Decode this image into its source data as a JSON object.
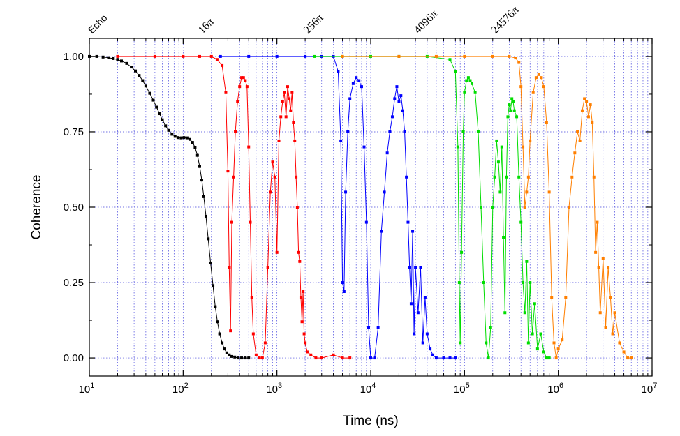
{
  "chart_data": {
    "type": "scatter",
    "title": "",
    "xlabel": "Time (ns)",
    "ylabel": "Coherence",
    "x_scale": "log",
    "xlim": [
      10,
      10000000
    ],
    "ylim": [
      -0.06,
      1.06
    ],
    "x_ticks": [
      {
        "value": 10,
        "base": "10",
        "exp": "1"
      },
      {
        "value": 100,
        "base": "10",
        "exp": "2"
      },
      {
        "value": 1000,
        "base": "10",
        "exp": "3"
      },
      {
        "value": 10000,
        "base": "10",
        "exp": "4"
      },
      {
        "value": 100000,
        "base": "10",
        "exp": "5"
      },
      {
        "value": 1000000,
        "base": "10",
        "exp": "6"
      },
      {
        "value": 10000000,
        "base": "10",
        "exp": "7"
      }
    ],
    "y_ticks": [
      {
        "value": 0,
        "label": "0.00"
      },
      {
        "value": 0.25,
        "label": "0.25"
      },
      {
        "value": 0.5,
        "label": "0.50"
      },
      {
        "value": 0.75,
        "label": "0.75"
      },
      {
        "value": 1,
        "label": "1.00"
      }
    ],
    "grid": true,
    "legend": "none",
    "annotations": [
      {
        "text": "Echo",
        "x": 10
      },
      {
        "text": "16π",
        "x": 150
      },
      {
        "text": "256π",
        "x": 2000
      },
      {
        "text": "4096π",
        "x": 30000
      },
      {
        "text": "24576π",
        "x": 200000
      }
    ],
    "series": [
      {
        "color": "#000000",
        "points": [
          [
            10,
            1.0
          ],
          [
            12,
            1.0
          ],
          [
            14,
            0.998
          ],
          [
            16,
            0.996
          ],
          [
            18,
            0.993
          ],
          [
            20,
            0.99
          ],
          [
            22,
            0.985
          ],
          [
            25,
            0.977
          ],
          [
            28,
            0.965
          ],
          [
            31,
            0.952
          ],
          [
            34,
            0.937
          ],
          [
            37,
            0.92
          ],
          [
            40,
            0.902
          ],
          [
            44,
            0.878
          ],
          [
            48,
            0.855
          ],
          [
            52,
            0.832
          ],
          [
            56,
            0.81
          ],
          [
            60,
            0.79
          ],
          [
            65,
            0.77
          ],
          [
            70,
            0.755
          ],
          [
            76,
            0.742
          ],
          [
            82,
            0.735
          ],
          [
            88,
            0.731
          ],
          [
            95,
            0.73
          ],
          [
            102,
            0.731
          ],
          [
            110,
            0.73
          ],
          [
            118,
            0.725
          ],
          [
            126,
            0.715
          ],
          [
            134,
            0.698
          ],
          [
            142,
            0.672
          ],
          [
            150,
            0.635
          ],
          [
            158,
            0.59
          ],
          [
            166,
            0.535
          ],
          [
            175,
            0.47
          ],
          [
            185,
            0.395
          ],
          [
            196,
            0.315
          ],
          [
            208,
            0.24
          ],
          [
            220,
            0.17
          ],
          [
            232,
            0.12
          ],
          [
            245,
            0.08
          ],
          [
            260,
            0.05
          ],
          [
            275,
            0.03
          ],
          [
            292,
            0.017
          ],
          [
            310,
            0.01
          ],
          [
            330,
            0.005
          ],
          [
            355,
            0.003
          ],
          [
            385,
            0.0
          ],
          [
            420,
            0.0
          ],
          [
            460,
            0.0
          ],
          [
            500,
            0.0
          ]
        ]
      },
      {
        "color": "#ff0000",
        "points": [
          [
            20,
            1.0
          ],
          [
            50,
            1.0
          ],
          [
            100,
            1.0
          ],
          [
            150,
            1.0
          ],
          [
            200,
            1.0
          ],
          [
            230,
            0.99
          ],
          [
            260,
            0.97
          ],
          [
            285,
            0.88
          ],
          [
            300,
            0.62
          ],
          [
            310,
            0.3
          ],
          [
            320,
            0.09
          ],
          [
            330,
            0.45
          ],
          [
            345,
            0.6
          ],
          [
            360,
            0.75
          ],
          [
            380,
            0.85
          ],
          [
            400,
            0.9
          ],
          [
            420,
            0.93
          ],
          [
            440,
            0.93
          ],
          [
            460,
            0.92
          ],
          [
            480,
            0.9
          ],
          [
            500,
            0.7
          ],
          [
            520,
            0.45
          ],
          [
            540,
            0.2
          ],
          [
            560,
            0.08
          ],
          [
            600,
            0.01
          ],
          [
            650,
            0.0
          ],
          [
            700,
            0.0
          ],
          [
            750,
            0.05
          ],
          [
            800,
            0.3
          ],
          [
            850,
            0.55
          ],
          [
            900,
            0.65
          ],
          [
            950,
            0.6
          ],
          [
            1000,
            0.35
          ],
          [
            1050,
            0.72
          ],
          [
            1100,
            0.8
          ],
          [
            1150,
            0.85
          ],
          [
            1200,
            0.88
          ],
          [
            1250,
            0.8
          ],
          [
            1300,
            0.9
          ],
          [
            1350,
            0.86
          ],
          [
            1400,
            0.82
          ],
          [
            1450,
            0.88
          ],
          [
            1500,
            0.78
          ],
          [
            1550,
            0.72
          ],
          [
            1600,
            0.6
          ],
          [
            1650,
            0.5
          ],
          [
            1700,
            0.35
          ],
          [
            1750,
            0.32
          ],
          [
            1800,
            0.2
          ],
          [
            1850,
            0.12
          ],
          [
            1900,
            0.22
          ],
          [
            1950,
            0.08
          ],
          [
            2000,
            0.05
          ],
          [
            2100,
            0.02
          ],
          [
            2300,
            0.01
          ],
          [
            2600,
            0.0
          ],
          [
            3000,
            0.0
          ],
          [
            4000,
            0.01
          ],
          [
            5000,
            0.0
          ],
          [
            6000,
            0.0
          ]
        ]
      },
      {
        "color": "#0000ff",
        "points": [
          [
            250,
            1.0
          ],
          [
            500,
            1.0
          ],
          [
            1000,
            1.0
          ],
          [
            2000,
            1.0
          ],
          [
            3000,
            1.0
          ],
          [
            4000,
            1.0
          ],
          [
            4500,
            0.95
          ],
          [
            4800,
            0.72
          ],
          [
            5000,
            0.25
          ],
          [
            5200,
            0.22
          ],
          [
            5400,
            0.55
          ],
          [
            5700,
            0.75
          ],
          [
            6000,
            0.86
          ],
          [
            6500,
            0.91
          ],
          [
            7000,
            0.93
          ],
          [
            7500,
            0.92
          ],
          [
            8000,
            0.9
          ],
          [
            8500,
            0.7
          ],
          [
            9000,
            0.45
          ],
          [
            9500,
            0.1
          ],
          [
            10000,
            0.0
          ],
          [
            11000,
            0.0
          ],
          [
            12000,
            0.1
          ],
          [
            13000,
            0.42
          ],
          [
            14000,
            0.55
          ],
          [
            15000,
            0.68
          ],
          [
            16000,
            0.75
          ],
          [
            17000,
            0.8
          ],
          [
            18000,
            0.86
          ],
          [
            19000,
            0.9
          ],
          [
            20000,
            0.85
          ],
          [
            21000,
            0.87
          ],
          [
            22000,
            0.82
          ],
          [
            23000,
            0.75
          ],
          [
            24000,
            0.6
          ],
          [
            25000,
            0.45
          ],
          [
            26000,
            0.3
          ],
          [
            27000,
            0.18
          ],
          [
            28000,
            0.42
          ],
          [
            29000,
            0.08
          ],
          [
            30000,
            0.3
          ],
          [
            32000,
            0.15
          ],
          [
            34000,
            0.3
          ],
          [
            36000,
            0.05
          ],
          [
            38000,
            0.2
          ],
          [
            40000,
            0.08
          ],
          [
            43000,
            0.03
          ],
          [
            46000,
            0.01
          ],
          [
            50000,
            0.0
          ],
          [
            60000,
            0.0
          ],
          [
            70000,
            0.0
          ],
          [
            80000,
            0.0
          ]
        ]
      },
      {
        "color": "#00dd00",
        "points": [
          [
            2500,
            1.0
          ],
          [
            5000,
            1.0
          ],
          [
            10000,
            1.0
          ],
          [
            20000,
            1.0
          ],
          [
            40000,
            1.0
          ],
          [
            70000,
            0.99
          ],
          [
            80000,
            0.95
          ],
          [
            85000,
            0.7
          ],
          [
            88000,
            0.25
          ],
          [
            90000,
            0.05
          ],
          [
            93000,
            0.35
          ],
          [
            97000,
            0.75
          ],
          [
            100000,
            0.88
          ],
          [
            105000,
            0.92
          ],
          [
            110000,
            0.93
          ],
          [
            115000,
            0.92
          ],
          [
            120000,
            0.91
          ],
          [
            130000,
            0.88
          ],
          [
            140000,
            0.75
          ],
          [
            150000,
            0.5
          ],
          [
            160000,
            0.25
          ],
          [
            170000,
            0.05
          ],
          [
            180000,
            0.0
          ],
          [
            190000,
            0.1
          ],
          [
            200000,
            0.5
          ],
          [
            210000,
            0.6
          ],
          [
            220000,
            0.72
          ],
          [
            230000,
            0.65
          ],
          [
            240000,
            0.55
          ],
          [
            250000,
            0.7
          ],
          [
            260000,
            0.4
          ],
          [
            270000,
            0.15
          ],
          [
            280000,
            0.6
          ],
          [
            290000,
            0.8
          ],
          [
            300000,
            0.84
          ],
          [
            310000,
            0.82
          ],
          [
            320000,
            0.86
          ],
          [
            330000,
            0.85
          ],
          [
            340000,
            0.82
          ],
          [
            360000,
            0.8
          ],
          [
            380000,
            0.6
          ],
          [
            400000,
            0.45
          ],
          [
            420000,
            0.25
          ],
          [
            440000,
            0.15
          ],
          [
            460000,
            0.32
          ],
          [
            480000,
            0.05
          ],
          [
            500000,
            0.25
          ],
          [
            530000,
            0.08
          ],
          [
            560000,
            0.18
          ],
          [
            600000,
            0.03
          ],
          [
            650000,
            0.08
          ],
          [
            700000,
            0.02
          ],
          [
            750000,
            0.0
          ],
          [
            800000,
            0.0
          ]
        ]
      },
      {
        "color": "#ff7f00",
        "points": [
          [
            5000,
            1.0
          ],
          [
            20000,
            1.0
          ],
          [
            50000,
            1.0
          ],
          [
            100000,
            1.0
          ],
          [
            200000,
            1.0
          ],
          [
            300000,
            1.0
          ],
          [
            350000,
            0.995
          ],
          [
            380000,
            0.98
          ],
          [
            400000,
            0.9
          ],
          [
            420000,
            0.7
          ],
          [
            440000,
            0.5
          ],
          [
            460000,
            0.55
          ],
          [
            480000,
            0.6
          ],
          [
            500000,
            0.72
          ],
          [
            540000,
            0.88
          ],
          [
            580000,
            0.93
          ],
          [
            620000,
            0.94
          ],
          [
            660000,
            0.93
          ],
          [
            700000,
            0.9
          ],
          [
            750000,
            0.78
          ],
          [
            800000,
            0.55
          ],
          [
            850000,
            0.2
          ],
          [
            900000,
            0.05
          ],
          [
            950000,
            0.0
          ],
          [
            1000000,
            0.03
          ],
          [
            1100000,
            0.06
          ],
          [
            1200000,
            0.2
          ],
          [
            1300000,
            0.5
          ],
          [
            1400000,
            0.6
          ],
          [
            1500000,
            0.68
          ],
          [
            1600000,
            0.75
          ],
          [
            1700000,
            0.72
          ],
          [
            1800000,
            0.82
          ],
          [
            1900000,
            0.86
          ],
          [
            2000000,
            0.85
          ],
          [
            2100000,
            0.8
          ],
          [
            2200000,
            0.84
          ],
          [
            2300000,
            0.78
          ],
          [
            2400000,
            0.6
          ],
          [
            2500000,
            0.35
          ],
          [
            2600000,
            0.45
          ],
          [
            2700000,
            0.3
          ],
          [
            2800000,
            0.15
          ],
          [
            3000000,
            0.33
          ],
          [
            3200000,
            0.1
          ],
          [
            3400000,
            0.3
          ],
          [
            3600000,
            0.2
          ],
          [
            3800000,
            0.08
          ],
          [
            4000000,
            0.15
          ],
          [
            4500000,
            0.05
          ],
          [
            5000000,
            0.02
          ],
          [
            5500000,
            0.0
          ],
          [
            6000000,
            0.0
          ]
        ]
      }
    ]
  }
}
